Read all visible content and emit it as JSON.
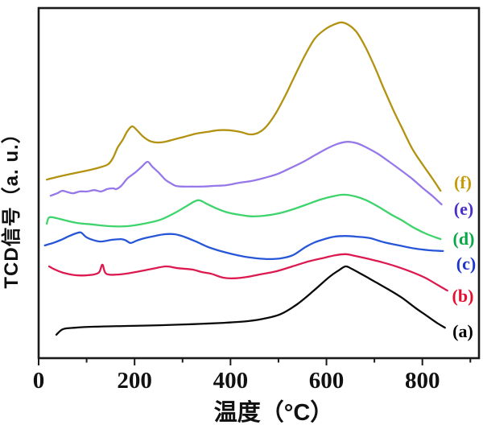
{
  "chart_data": {
    "type": "line",
    "title": "",
    "xlabel": "温度（°C）",
    "ylabel": "TCD信号（a. u.）",
    "grid": false,
    "legend_position": "right-inside",
    "x_axis": {
      "min": 0,
      "max": 918,
      "major_ticks": [
        0,
        200,
        400,
        600,
        800
      ],
      "major_tick_labels": [
        "0",
        "200",
        "400",
        "600",
        "800"
      ],
      "minor_ticks": [
        100,
        300,
        500,
        700,
        900
      ]
    },
    "y_axis": {
      "units": "a.u.",
      "ticks": "none",
      "range": [
        0,
        1
      ]
    },
    "series": [
      {
        "name": "(a)",
        "color": "#0a0a0a",
        "label_color": "#000000",
        "label_pos": [
          575,
          411
        ],
        "points": [
          [
            37,
            0.067
          ],
          [
            51,
            0.083
          ],
          [
            76,
            0.087
          ],
          [
            118,
            0.09
          ],
          [
            185,
            0.092
          ],
          [
            253,
            0.094
          ],
          [
            320,
            0.097
          ],
          [
            387,
            0.101
          ],
          [
            438,
            0.106
          ],
          [
            471,
            0.113
          ],
          [
            505,
            0.126
          ],
          [
            539,
            0.154
          ],
          [
            572,
            0.191
          ],
          [
            606,
            0.232
          ],
          [
            626,
            0.251
          ],
          [
            640,
            0.262
          ],
          [
            653,
            0.255
          ],
          [
            677,
            0.237
          ],
          [
            704,
            0.216
          ],
          [
            731,
            0.195
          ],
          [
            758,
            0.172
          ],
          [
            784,
            0.145
          ],
          [
            808,
            0.122
          ],
          [
            830,
            0.101
          ],
          [
            847,
            0.087
          ]
        ]
      },
      {
        "name": "(b)",
        "color": "#dc1a50",
        "label_color": "#e50f2d",
        "label_pos": [
          575,
          367
        ],
        "points": [
          [
            22,
            0.262
          ],
          [
            34,
            0.253
          ],
          [
            51,
            0.244
          ],
          [
            76,
            0.237
          ],
          [
            104,
            0.237
          ],
          [
            125,
            0.244
          ],
          [
            133,
            0.267
          ],
          [
            141,
            0.241
          ],
          [
            168,
            0.239
          ],
          [
            202,
            0.246
          ],
          [
            236,
            0.255
          ],
          [
            266,
            0.262
          ],
          [
            290,
            0.257
          ],
          [
            320,
            0.253
          ],
          [
            340,
            0.246
          ],
          [
            360,
            0.241
          ],
          [
            384,
            0.23
          ],
          [
            407,
            0.228
          ],
          [
            434,
            0.232
          ],
          [
            461,
            0.239
          ],
          [
            495,
            0.248
          ],
          [
            529,
            0.262
          ],
          [
            562,
            0.276
          ],
          [
            596,
            0.287
          ],
          [
            619,
            0.294
          ],
          [
            640,
            0.297
          ],
          [
            660,
            0.292
          ],
          [
            683,
            0.285
          ],
          [
            710,
            0.276
          ],
          [
            741,
            0.264
          ],
          [
            774,
            0.248
          ],
          [
            805,
            0.23
          ],
          [
            832,
            0.209
          ],
          [
            852,
            0.193
          ]
        ]
      },
      {
        "name": "(c)",
        "color": "#2856d8",
        "label_color": "#1c35cc",
        "label_pos": [
          579,
          327
        ],
        "points": [
          [
            13,
            0.322
          ],
          [
            30,
            0.329
          ],
          [
            47,
            0.338
          ],
          [
            64,
            0.349
          ],
          [
            77,
            0.356
          ],
          [
            88,
            0.359
          ],
          [
            98,
            0.347
          ],
          [
            108,
            0.34
          ],
          [
            128,
            0.333
          ],
          [
            152,
            0.338
          ],
          [
            172,
            0.34
          ],
          [
            182,
            0.336
          ],
          [
            192,
            0.329
          ],
          [
            205,
            0.336
          ],
          [
            222,
            0.343
          ],
          [
            242,
            0.349
          ],
          [
            263,
            0.354
          ],
          [
            283,
            0.354
          ],
          [
            303,
            0.347
          ],
          [
            328,
            0.333
          ],
          [
            354,
            0.317
          ],
          [
            379,
            0.306
          ],
          [
            404,
            0.297
          ],
          [
            429,
            0.29
          ],
          [
            455,
            0.285
          ],
          [
            480,
            0.283
          ],
          [
            505,
            0.285
          ],
          [
            530,
            0.294
          ],
          [
            556,
            0.317
          ],
          [
            576,
            0.331
          ],
          [
            596,
            0.34
          ],
          [
            616,
            0.347
          ],
          [
            640,
            0.349
          ],
          [
            663,
            0.347
          ],
          [
            690,
            0.343
          ],
          [
            720,
            0.331
          ],
          [
            751,
            0.322
          ],
          [
            784,
            0.313
          ],
          [
            815,
            0.308
          ],
          [
            843,
            0.306
          ]
        ]
      },
      {
        "name": "(d)",
        "color": "#3ed46c",
        "label_color": "#06a845",
        "label_pos": [
          576,
          296
        ],
        "points": [
          [
            17,
            0.384
          ],
          [
            22,
            0.402
          ],
          [
            37,
            0.4
          ],
          [
            57,
            0.393
          ],
          [
            81,
            0.386
          ],
          [
            111,
            0.382
          ],
          [
            148,
            0.377
          ],
          [
            185,
            0.377
          ],
          [
            219,
            0.384
          ],
          [
            253,
            0.395
          ],
          [
            283,
            0.414
          ],
          [
            308,
            0.434
          ],
          [
            332,
            0.451
          ],
          [
            350,
            0.441
          ],
          [
            370,
            0.428
          ],
          [
            394,
            0.416
          ],
          [
            421,
            0.409
          ],
          [
            444,
            0.405
          ],
          [
            471,
            0.407
          ],
          [
            502,
            0.414
          ],
          [
            530,
            0.425
          ],
          [
            559,
            0.439
          ],
          [
            588,
            0.453
          ],
          [
            613,
            0.462
          ],
          [
            636,
            0.467
          ],
          [
            660,
            0.462
          ],
          [
            683,
            0.451
          ],
          [
            709,
            0.432
          ],
          [
            734,
            0.411
          ],
          [
            758,
            0.393
          ],
          [
            783,
            0.372
          ],
          [
            810,
            0.354
          ],
          [
            838,
            0.34
          ]
        ]
      },
      {
        "name": "(e)",
        "color": "#9678e8",
        "label_color": "#4c2fc8",
        "label_pos": [
          576,
          259
        ],
        "points": [
          [
            25,
            0.464
          ],
          [
            39,
            0.471
          ],
          [
            49,
            0.478
          ],
          [
            61,
            0.474
          ],
          [
            72,
            0.471
          ],
          [
            86,
            0.476
          ],
          [
            101,
            0.476
          ],
          [
            116,
            0.48
          ],
          [
            130,
            0.476
          ],
          [
            143,
            0.483
          ],
          [
            155,
            0.485
          ],
          [
            162,
            0.483
          ],
          [
            172,
            0.492
          ],
          [
            185,
            0.513
          ],
          [
            202,
            0.531
          ],
          [
            215,
            0.547
          ],
          [
            227,
            0.561
          ],
          [
            237,
            0.547
          ],
          [
            251,
            0.529
          ],
          [
            264,
            0.51
          ],
          [
            276,
            0.499
          ],
          [
            286,
            0.492
          ],
          [
            300,
            0.49
          ],
          [
            320,
            0.49
          ],
          [
            340,
            0.49
          ],
          [
            364,
            0.492
          ],
          [
            391,
            0.494
          ],
          [
            418,
            0.501
          ],
          [
            444,
            0.506
          ],
          [
            471,
            0.515
          ],
          [
            498,
            0.526
          ],
          [
            525,
            0.543
          ],
          [
            552,
            0.561
          ],
          [
            579,
            0.582
          ],
          [
            603,
            0.6
          ],
          [
            623,
            0.612
          ],
          [
            643,
            0.618
          ],
          [
            663,
            0.614
          ],
          [
            683,
            0.602
          ],
          [
            707,
            0.584
          ],
          [
            731,
            0.561
          ],
          [
            754,
            0.538
          ],
          [
            778,
            0.513
          ],
          [
            800,
            0.487
          ],
          [
            822,
            0.462
          ],
          [
            840,
            0.439
          ]
        ]
      },
      {
        "name": "(f)",
        "color": "#b29210",
        "label_color": "#c49c0a",
        "label_pos": [
          575,
          226
        ],
        "points": [
          [
            17,
            0.51
          ],
          [
            37,
            0.517
          ],
          [
            59,
            0.524
          ],
          [
            84,
            0.531
          ],
          [
            108,
            0.538
          ],
          [
            128,
            0.545
          ],
          [
            145,
            0.554
          ],
          [
            155,
            0.572
          ],
          [
            165,
            0.602
          ],
          [
            175,
            0.623
          ],
          [
            185,
            0.648
          ],
          [
            195,
            0.662
          ],
          [
            205,
            0.651
          ],
          [
            217,
            0.634
          ],
          [
            231,
            0.621
          ],
          [
            246,
            0.616
          ],
          [
            263,
            0.618
          ],
          [
            283,
            0.625
          ],
          [
            303,
            0.632
          ],
          [
            327,
            0.641
          ],
          [
            350,
            0.646
          ],
          [
            374,
            0.651
          ],
          [
            397,
            0.651
          ],
          [
            421,
            0.646
          ],
          [
            441,
            0.639
          ],
          [
            458,
            0.644
          ],
          [
            475,
            0.662
          ],
          [
            495,
            0.701
          ],
          [
            515,
            0.752
          ],
          [
            535,
            0.809
          ],
          [
            556,
            0.867
          ],
          [
            576,
            0.913
          ],
          [
            596,
            0.938
          ],
          [
            614,
            0.952
          ],
          [
            631,
            0.959
          ],
          [
            646,
            0.952
          ],
          [
            663,
            0.931
          ],
          [
            680,
            0.892
          ],
          [
            699,
            0.837
          ],
          [
            719,
            0.772
          ],
          [
            739,
            0.71
          ],
          [
            759,
            0.653
          ],
          [
            779,
            0.598
          ],
          [
            800,
            0.554
          ],
          [
            820,
            0.515
          ],
          [
            838,
            0.478
          ]
        ]
      }
    ]
  }
}
